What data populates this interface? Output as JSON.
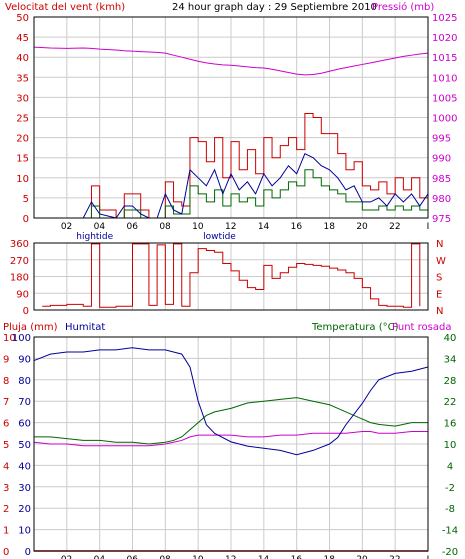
{
  "colors": {
    "wind": "#cc0000",
    "gust": "#cc0000",
    "avg_wind": "#000099",
    "dir": "#cc0000",
    "pressure": "#cc00cc",
    "rain": "#cc0000",
    "humidity": "#000099",
    "temperature": "#006600",
    "dewpoint": "#cc00cc",
    "grid": "#cccccc",
    "frame": "#000000",
    "bg": "#ffffff"
  },
  "header": {
    "title": "24 hour graph day : 29 Septiembre 2010",
    "wind_label": "Velocitat del vent (kmh)",
    "pressure_label": "Pressió (mb)"
  },
  "tide_labels": [
    "hightide",
    "lowtide"
  ],
  "chart_data": [
    {
      "type": "line",
      "name": "wind",
      "x_ticks": [
        "02",
        "04",
        "06",
        "08",
        "10",
        "12",
        "14",
        "16",
        "18",
        "20",
        "22",
        "I"
      ],
      "ylabel_left": "Velocitat del vent (kmh)",
      "ylabel_right": "Pressió (mb)",
      "ylim_left": [
        0,
        50
      ],
      "yticks_left": [
        0,
        5,
        10,
        15,
        20,
        25,
        30,
        35,
        40,
        45,
        50
      ],
      "ylim_right": [
        975,
        1025
      ],
      "yticks_right": [
        975,
        980,
        985,
        990,
        995,
        1000,
        1005,
        1010,
        1015,
        1020,
        1025
      ],
      "grid": true,
      "x_hours": [
        0,
        1,
        2,
        3,
        3.5,
        4,
        5,
        5.5,
        6,
        6.5,
        7,
        7.5,
        8,
        8.5,
        9,
        9.5,
        10,
        10.5,
        11,
        11.5,
        12,
        12.5,
        13,
        13.5,
        14,
        14.5,
        15,
        15.5,
        16,
        16.5,
        17,
        17.5,
        18,
        18.5,
        19,
        19.5,
        20,
        20.5,
        21,
        21.5,
        22,
        22.5,
        23,
        23.5,
        24
      ],
      "series": [
        {
          "key": "gust",
          "values": [
            0,
            0,
            0,
            0,
            8,
            2,
            0,
            6,
            6,
            2,
            0,
            0,
            9,
            4,
            3,
            20,
            19,
            14,
            20,
            10,
            19,
            12,
            17,
            11,
            20,
            15,
            18,
            20,
            17,
            26,
            25,
            21,
            21,
            16,
            12,
            14,
            8,
            7,
            9,
            6,
            10,
            7,
            10,
            5,
            10
          ]
        },
        {
          "key": "avg_wind",
          "values": [
            0,
            0,
            0,
            0,
            4,
            1,
            0,
            3,
            3,
            1,
            0,
            0,
            6,
            2,
            1,
            12,
            10,
            8,
            12,
            6,
            11,
            7,
            9,
            6,
            11,
            8,
            10,
            13,
            11,
            16,
            15,
            13,
            12,
            10,
            7,
            8,
            4,
            4,
            5,
            3,
            6,
            4,
            6,
            3,
            6
          ]
        },
        {
          "key": "gust_dark",
          "values": [
            0,
            0,
            0,
            0,
            3,
            0,
            0,
            2,
            2,
            0,
            0,
            0,
            3,
            1,
            1,
            8,
            6,
            4,
            7,
            3,
            6,
            4,
            5,
            3,
            7,
            5,
            7,
            9,
            8,
            12,
            10,
            8,
            7,
            6,
            4,
            4,
            2,
            2,
            3,
            2,
            3,
            2,
            3,
            2,
            3
          ]
        },
        {
          "key": "pressure",
          "values": [
            1017.5,
            1017.3,
            1017.2,
            1017.3,
            1017.2,
            1017.0,
            1016.8,
            1016.6,
            1016.5,
            1016.4,
            1016.3,
            1016.2,
            1016.0,
            1015.5,
            1015.0,
            1014.5,
            1014.0,
            1013.6,
            1013.3,
            1013.1,
            1013.0,
            1012.8,
            1012.6,
            1012.4,
            1012.3,
            1012.0,
            1011.6,
            1011.2,
            1010.8,
            1010.6,
            1010.7,
            1011.0,
            1011.5,
            1012.0,
            1012.4,
            1012.8,
            1013.2,
            1013.6,
            1014.0,
            1014.4,
            1014.8,
            1015.2,
            1015.5,
            1015.8,
            1016.0
          ]
        }
      ]
    },
    {
      "type": "scatter",
      "name": "direction",
      "yticks_left": [
        0,
        90,
        180,
        270,
        360
      ],
      "yticks_right": [
        "N",
        "E",
        "S",
        "W",
        "N"
      ],
      "ylim_left": [
        0,
        360
      ],
      "x_hours": [
        0.5,
        1,
        2,
        3,
        3.5,
        4,
        5,
        6,
        7,
        7.5,
        8,
        8.5,
        9,
        9.5,
        10,
        10.5,
        11,
        11.5,
        12,
        12.5,
        13,
        13.5,
        14,
        14.5,
        15,
        15.5,
        16,
        16.5,
        17,
        17.5,
        18,
        18.5,
        19,
        19.5,
        20,
        20.5,
        21,
        21.5,
        22,
        22.5,
        23,
        23.5
      ],
      "values": [
        20,
        25,
        30,
        20,
        355,
        15,
        20,
        355,
        25,
        350,
        30,
        355,
        20,
        200,
        330,
        320,
        310,
        250,
        210,
        160,
        120,
        110,
        240,
        170,
        200,
        230,
        250,
        245,
        240,
        235,
        225,
        215,
        200,
        170,
        120,
        60,
        25,
        20,
        20,
        15,
        355,
        20
      ]
    },
    {
      "type": "line",
      "name": "humidity_temp",
      "x_ticks": [
        "02",
        "04",
        "06",
        "08",
        "10",
        "12",
        "14",
        "16",
        "18",
        "20",
        "22",
        "I"
      ],
      "title_left": "Pluja (mm)",
      "title_humidity": "Humitat",
      "title_temp": "Temperatura (°C)",
      "title_dew": "Punt rosada",
      "yticks_left_rain": [
        0,
        1,
        2,
        3,
        4,
        5,
        6,
        7,
        8,
        9,
        10
      ],
      "yticks_left_hum": [
        0,
        10,
        20,
        30,
        40,
        50,
        60,
        70,
        80,
        90,
        100
      ],
      "yticks_right_temp": [
        -20,
        -14,
        -8,
        -2,
        4,
        10,
        16,
        22,
        28,
        34,
        40
      ],
      "ylim_left": [
        0,
        100
      ],
      "ylim_right": [
        -20,
        40
      ],
      "x_hours": [
        0,
        1,
        2,
        3,
        4,
        5,
        6,
        7,
        8,
        8.5,
        9,
        9.5,
        10,
        10.5,
        11,
        12,
        13,
        14,
        15,
        16,
        17,
        18,
        18.5,
        19,
        20,
        20.5,
        21,
        22,
        23,
        24
      ],
      "series": [
        {
          "key": "humidity",
          "values": [
            89,
            92,
            93,
            93,
            94,
            94,
            95,
            94,
            94,
            93,
            92,
            86,
            70,
            59,
            55,
            51,
            49,
            48,
            47,
            45,
            47,
            50,
            53,
            59,
            69,
            75,
            80,
            83,
            84,
            86
          ]
        },
        {
          "key": "temperature",
          "values": [
            12,
            12,
            11.5,
            11,
            11,
            10.5,
            10.5,
            10,
            10.5,
            11,
            12,
            14,
            16,
            18,
            19,
            20,
            21.5,
            22,
            22.5,
            23,
            22,
            21,
            20,
            19,
            17,
            16,
            15.5,
            15,
            16,
            16
          ]
        },
        {
          "key": "dewpoint",
          "values": [
            10.5,
            10,
            10,
            9.5,
            9.5,
            9.5,
            9.5,
            9.5,
            10,
            10.5,
            11,
            12,
            12.5,
            12.5,
            12.5,
            12.5,
            12,
            12,
            12.5,
            12.5,
            13,
            13,
            13,
            13,
            13.5,
            13.5,
            13,
            13,
            13.5,
            13.5
          ]
        }
      ],
      "rain_values": [
        0,
        0,
        0,
        0,
        0,
        0,
        0,
        0,
        0,
        0,
        0,
        0,
        0,
        0,
        0,
        0,
        0,
        0,
        0,
        0,
        0,
        0,
        0,
        0,
        0,
        0,
        0,
        0,
        0,
        0
      ]
    }
  ]
}
